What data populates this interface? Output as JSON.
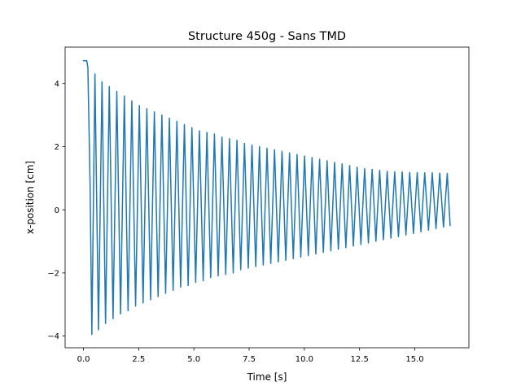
{
  "chart_data": {
    "type": "line",
    "title": "Structure 450g - Sans TMD",
    "xlabel": "Time [s]",
    "ylabel": "x-position [cm]",
    "xlim": [
      -0.83,
      17.45
    ],
    "ylim": [
      -4.37,
      5.15
    ],
    "xticks": [
      0,
      2.5,
      5,
      7.5,
      10,
      12.5,
      15
    ],
    "xtick_labels": [
      "0.0",
      "2.5",
      "5.0",
      "7.5",
      "10.0",
      "12.5",
      "15.0"
    ],
    "yticks": [
      -4,
      -2,
      0,
      2,
      4
    ],
    "ytick_labels": [
      "−4",
      "−2",
      "0",
      "2",
      "4"
    ],
    "grid": false,
    "legend": "none",
    "color": "#1f77b4",
    "series": [
      {
        "x": [
          0.0,
          0.15,
          0.2,
          0.3,
          0.38,
          0.52,
          0.68,
          0.84,
          1.0,
          1.17,
          1.34,
          1.51,
          1.68,
          1.85,
          2.02,
          2.19,
          2.36,
          2.53,
          2.7,
          2.87,
          3.04,
          3.21,
          3.38,
          3.55,
          3.72,
          3.89,
          4.06,
          4.23,
          4.4,
          4.57,
          4.74,
          4.91,
          5.08,
          5.25,
          5.42,
          5.59,
          5.76,
          5.93,
          6.1,
          6.27,
          6.44,
          6.61,
          6.78,
          6.95,
          7.12,
          7.29,
          7.46,
          7.63,
          7.8,
          7.97,
          8.14,
          8.31,
          8.48,
          8.65,
          8.82,
          8.99,
          9.16,
          9.33,
          9.5,
          9.67,
          9.84,
          10.01,
          10.18,
          10.35,
          10.52,
          10.69,
          10.86,
          11.03,
          11.2,
          11.37,
          11.54,
          11.71,
          11.88,
          12.05,
          12.22,
          12.39,
          12.56,
          12.73,
          12.9,
          13.07,
          13.24,
          13.41,
          13.58,
          13.75,
          13.92,
          14.09,
          14.26,
          14.43,
          14.6,
          14.77,
          14.94,
          15.11,
          15.28,
          15.45,
          15.62,
          15.79,
          15.96,
          16.13,
          16.3,
          16.47,
          16.6
        ],
        "y": [
          4.72,
          4.72,
          4.5,
          0.8,
          -3.95,
          4.3,
          -3.8,
          4.05,
          -3.6,
          3.9,
          -3.45,
          3.75,
          -3.3,
          3.6,
          -3.2,
          3.45,
          -3.05,
          3.3,
          -2.95,
          3.2,
          -2.85,
          3.1,
          -2.75,
          3.0,
          -2.65,
          2.9,
          -2.55,
          2.8,
          -2.45,
          2.7,
          -2.4,
          2.6,
          -2.3,
          2.5,
          -2.25,
          2.45,
          -2.15,
          2.4,
          -2.1,
          2.3,
          -2.05,
          2.25,
          -2.0,
          2.2,
          -1.9,
          2.1,
          -1.85,
          2.05,
          -1.8,
          2.0,
          -1.75,
          1.95,
          -1.7,
          1.9,
          -1.65,
          1.85,
          -1.6,
          1.8,
          -1.55,
          1.75,
          -1.5,
          1.7,
          -1.45,
          1.65,
          -1.4,
          1.6,
          -1.35,
          1.55,
          -1.3,
          1.5,
          -1.25,
          1.45,
          -1.2,
          1.4,
          -1.15,
          1.35,
          -1.1,
          1.3,
          -1.05,
          1.28,
          -1.0,
          1.25,
          -0.95,
          1.22,
          -0.9,
          1.2,
          -0.85,
          1.2,
          -0.8,
          1.18,
          -0.75,
          1.18,
          -0.7,
          1.17,
          -0.65,
          1.17,
          -0.6,
          1.16,
          -0.55,
          1.15,
          -0.5
        ]
      }
    ]
  }
}
